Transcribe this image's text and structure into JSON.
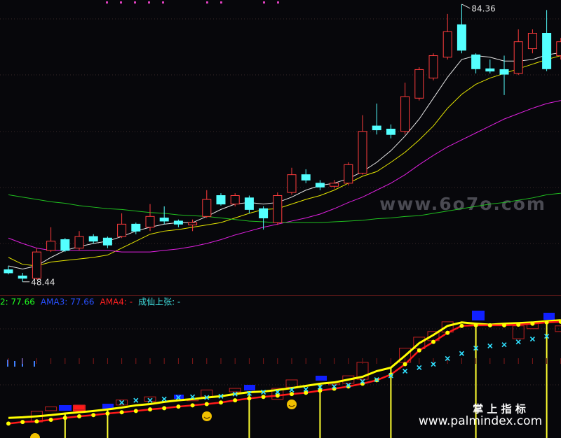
{
  "chart_data": [
    {
      "type": "candlestick",
      "up_color": "#ff3c3c",
      "down_color": "#54ffff",
      "open": [
        50.0,
        49.2,
        48.9,
        52.5,
        53.9,
        52.8,
        54.3,
        54.1,
        54.3,
        55.9,
        55.5,
        56.7,
        56.3,
        55.8,
        56.9,
        59.6,
        58.5,
        59.3,
        57.9,
        56.1,
        60.0,
        62.3,
        61.2,
        60.8,
        61.2,
        62.5,
        68.6,
        68.2,
        67.9,
        72.2,
        74.8,
        77.5,
        81.7,
        77.8,
        76.0,
        75.9,
        75.4,
        78.6,
        80.6,
        77.7
      ],
      "high": [
        50.5,
        49.6,
        52.8,
        55.5,
        54.1,
        55.0,
        54.6,
        54.3,
        57.3,
        56.1,
        58.5,
        58.2,
        56.5,
        56.5,
        60.3,
        59.9,
        59.9,
        59.6,
        58.2,
        60.0,
        63.2,
        63.0,
        61.6,
        61.6,
        63.9,
        70.0,
        71.5,
        68.8,
        74.2,
        76.2,
        78.0,
        83.1,
        84.36,
        78.0,
        77.2,
        77.7,
        81.1,
        81.1,
        83.6,
        80.0
      ],
      "low": [
        49.4,
        48.44,
        48.7,
        52.3,
        52.3,
        52.5,
        53.4,
        52.8,
        54.1,
        54.6,
        55.0,
        55.9,
        55.5,
        55.0,
        56.7,
        58.3,
        58.2,
        57.3,
        55.2,
        55.8,
        59.7,
        61.2,
        60.3,
        60.5,
        60.9,
        62.3,
        67.5,
        67.0,
        67.5,
        71.9,
        74.5,
        77.2,
        78.0,
        75.4,
        75.4,
        72.6,
        75.2,
        78.0,
        75.7,
        77.2
      ],
      "close": [
        49.6,
        48.9,
        52.3,
        53.7,
        52.5,
        54.3,
        53.7,
        53.2,
        55.9,
        55.0,
        56.9,
        56.3,
        55.9,
        56.1,
        59.1,
        58.5,
        59.6,
        57.8,
        56.7,
        59.6,
        62.3,
        61.6,
        60.7,
        61.2,
        63.6,
        67.9,
        68.1,
        67.5,
        72.4,
        75.9,
        77.7,
        80.8,
        78.4,
        76.0,
        75.7,
        75.3,
        79.5,
        80.6,
        76.0,
        79.5
      ],
      "series": [
        {
          "color": "#e8e8e8",
          "values": [
            50.5,
            50.1,
            50.5,
            51.6,
            52.5,
            53.0,
            53.4,
            53.7,
            54.3,
            55.0,
            55.5,
            55.9,
            56.1,
            56.1,
            56.9,
            57.8,
            58.5,
            58.7,
            58.5,
            58.7,
            59.4,
            60.3,
            60.9,
            61.2,
            61.8,
            62.7,
            63.9,
            65.4,
            67.3,
            69.5,
            72.2,
            74.9,
            77.2,
            77.7,
            77.5,
            77.0,
            77.0,
            77.2,
            77.8,
            78.1
          ]
        },
        {
          "color": "#e6e600",
          "values": [
            51.6,
            50.7,
            50.5,
            51.0,
            51.2,
            51.4,
            51.6,
            51.9,
            52.8,
            53.7,
            54.6,
            55.0,
            55.2,
            55.5,
            55.8,
            56.1,
            56.7,
            57.3,
            57.8,
            57.9,
            58.5,
            59.1,
            59.6,
            60.3,
            61.2,
            62.1,
            62.7,
            63.9,
            65.2,
            66.8,
            68.6,
            70.9,
            72.7,
            74.0,
            74.8,
            75.4,
            76.0,
            76.6,
            77.2,
            77.7
          ]
        },
        {
          "color": "#e020e0",
          "values": [
            54.1,
            53.4,
            52.8,
            52.5,
            52.5,
            52.5,
            52.5,
            52.5,
            52.3,
            52.3,
            52.3,
            52.5,
            52.7,
            53.0,
            53.4,
            53.9,
            54.5,
            55.0,
            55.5,
            55.9,
            56.3,
            56.7,
            57.2,
            57.9,
            58.7,
            59.4,
            60.3,
            61.2,
            62.3,
            63.6,
            64.8,
            65.9,
            66.8,
            67.7,
            68.6,
            69.5,
            70.2,
            70.9,
            71.5,
            71.9
          ]
        },
        {
          "color": "#20c020",
          "values": [
            59.7,
            59.4,
            59.1,
            58.8,
            58.6,
            58.3,
            58.1,
            57.9,
            57.8,
            57.6,
            57.4,
            57.3,
            57.1,
            57.0,
            56.9,
            56.7,
            56.5,
            56.3,
            56.2,
            56.1,
            56.1,
            56.1,
            56.1,
            56.2,
            56.3,
            56.4,
            56.6,
            56.7,
            56.9,
            57.0,
            57.3,
            57.6,
            57.9,
            58.2,
            58.5,
            58.7,
            59.0,
            59.3,
            59.7,
            59.9
          ]
        }
      ],
      "ylim": [
        46.7,
        84.9
      ],
      "watermark": "www.6o7o.com"
    },
    {
      "type": "line",
      "legend": [
        {
          "name": "2: 77.66",
          "color": "#20ff20"
        },
        {
          "name": "AMA3: 77.66",
          "color": "#2850ff"
        },
        {
          "name": "AMA4: -",
          "color": "#ff2020"
        },
        {
          "name": "成仙上张: -",
          "color": "#40e0e0"
        }
      ],
      "series": [
        {
          "color": "#ffff00",
          "style": "line",
          "values": [
            50.2,
            50.4,
            50.7,
            51.1,
            51.6,
            52.0,
            52.4,
            52.9,
            53.5,
            54.2,
            54.6,
            55.3,
            55.8,
            56.2,
            56.7,
            57.1,
            57.8,
            58.4,
            58.6,
            59.1,
            59.7,
            60.4,
            61.1,
            61.5,
            62.4,
            63.3,
            65.1,
            66.2,
            70.0,
            74.0,
            76.6,
            79.5,
            80.6,
            80.2,
            79.9,
            80.2,
            80.4,
            80.6,
            81.0,
            81.3
          ]
        },
        {
          "color": "#ff1a1a",
          "dot_color": "#ffff00",
          "style": "line-dots",
          "values": [
            48.4,
            48.9,
            49.1,
            49.6,
            50.2,
            50.7,
            51.1,
            51.6,
            52.0,
            52.4,
            52.9,
            53.3,
            53.8,
            54.2,
            54.6,
            55.1,
            55.8,
            56.4,
            56.9,
            57.3,
            57.8,
            58.2,
            58.9,
            59.5,
            60.2,
            61.1,
            62.2,
            64.0,
            67.3,
            71.7,
            74.4,
            77.3,
            79.5,
            79.7,
            79.7,
            79.7,
            79.9,
            80.2,
            80.6,
            80.8
          ]
        },
        {
          "color": "#30e0ff",
          "style": "cross",
          "values": [
            null,
            null,
            null,
            null,
            null,
            null,
            null,
            null,
            55.1,
            55.8,
            55.8,
            56.2,
            56.7,
            56.9,
            56.7,
            57.1,
            57.8,
            58.0,
            58.4,
            58.4,
            59.1,
            59.3,
            60.0,
            60.2,
            60.6,
            61.8,
            62.4,
            63.6,
            65.1,
            66.2,
            67.3,
            69.1,
            70.7,
            72.4,
            73.1,
            73.5,
            74.4,
            75.3,
            76.2,
            null
          ]
        }
      ],
      "ylim": [
        43.8,
        88.8
      ],
      "watermark": "掌 上 指 标",
      "watermark_url": "www.palmindex.com"
    }
  ]
}
